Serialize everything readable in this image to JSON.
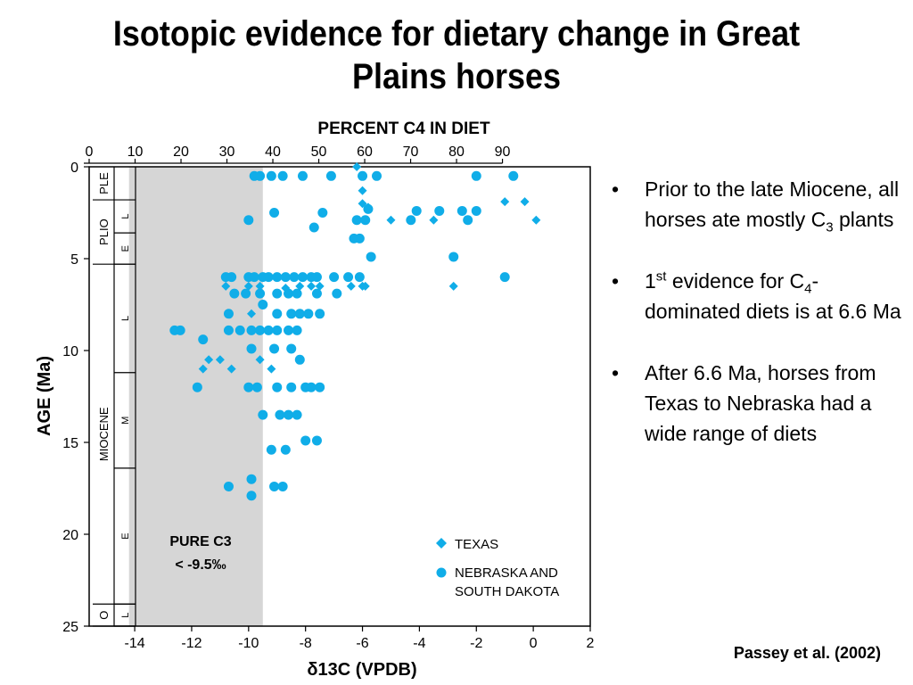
{
  "title": "Isotopic evidence for dietary change in Great Plains horses",
  "bullets": [
    {
      "prefix": "Prior to the late Miocene, all horses ate mostly C",
      "sub": "3",
      "suffix": " plants"
    },
    {
      "prefix": "1",
      "sup": "st",
      "mid": " evidence for C",
      "sub": "4",
      "suffix": "-dominated diets is at 6.6 Ma"
    },
    {
      "prefix": "After 6.6 Ma, horses from Texas to Nebraska had a wide range of diets"
    }
  ],
  "citation": "Passey et al. (2002)",
  "colors": {
    "points": "#10ade8",
    "shade": "#d6d6d6"
  },
  "chart_data": {
    "type": "scatter",
    "xlabel": "δ13C (VPDB)",
    "x_ticks": [
      -14,
      -12,
      -10,
      -8,
      -6,
      -4,
      -2,
      0,
      2
    ],
    "xlim": [
      -15.6,
      2
    ],
    "ylabel": "AGE (Ma)",
    "y_ticks": [
      0,
      5,
      10,
      15,
      20,
      25
    ],
    "ylim": [
      0,
      25
    ],
    "top_axis_label": "PERCENT C4 IN DIET",
    "top_ticks": [
      0,
      10,
      20,
      30,
      40,
      50,
      60,
      70,
      80,
      90
    ],
    "shaded_region": {
      "x_from": -15.6,
      "x_to": -9.5,
      "label_line1": "PURE C3",
      "label_line2": "< -9.5‰"
    },
    "timescale": {
      "epochs": [
        {
          "label": "PLE",
          "from": 0,
          "to": 1.8
        },
        {
          "label": "PLIO",
          "from": 1.8,
          "to": 5.3
        },
        {
          "label": "MIOCENE",
          "from": 5.3,
          "to": 23.8
        },
        {
          "label": "O",
          "from": 23.8,
          "to": 25
        }
      ],
      "subdivisions": [
        {
          "label": "L",
          "from": 1.8,
          "to": 3.6
        },
        {
          "label": "E",
          "from": 3.6,
          "to": 5.3
        },
        {
          "label": "L",
          "from": 5.3,
          "to": 11.2
        },
        {
          "label": "M",
          "from": 11.2,
          "to": 16.4
        },
        {
          "label": "E",
          "from": 16.4,
          "to": 23.8
        },
        {
          "label": "L",
          "from": 23.8,
          "to": 25
        }
      ]
    },
    "legend": {
      "placement": "bottom-right",
      "texas": "TEXAS",
      "nebraska_line1": "NEBRASKA AND",
      "nebraska_line2": "SOUTH DAKOTA"
    },
    "series": [
      {
        "name": "TEXAS",
        "marker": "diamond",
        "points": [
          [
            -6.2,
            0.0
          ],
          [
            -6.0,
            1.3
          ],
          [
            -6.0,
            2.0
          ],
          [
            -5.8,
            2.2
          ],
          [
            -5.0,
            2.9
          ],
          [
            -3.5,
            2.9
          ],
          [
            -1.0,
            1.9
          ],
          [
            -0.3,
            1.9
          ],
          [
            0.1,
            2.9
          ],
          [
            -10.8,
            6.5
          ],
          [
            -10.0,
            6.5
          ],
          [
            -9.6,
            6.5
          ],
          [
            -8.7,
            6.6
          ],
          [
            -8.2,
            6.5
          ],
          [
            -7.8,
            6.5
          ],
          [
            -7.5,
            6.5
          ],
          [
            -6.4,
            6.5
          ],
          [
            -6.0,
            6.5
          ],
          [
            -5.9,
            6.5
          ],
          [
            -2.8,
            6.5
          ],
          [
            -9.9,
            8.0
          ],
          [
            -11.4,
            10.5
          ],
          [
            -11.0,
            10.5
          ],
          [
            -11.6,
            11.0
          ],
          [
            -10.6,
            11.0
          ],
          [
            -9.6,
            10.5
          ],
          [
            -9.2,
            11.0
          ],
          [
            -9.7,
            12.0
          ]
        ]
      },
      {
        "name": "NEBRASKA AND SOUTH DAKOTA",
        "marker": "circle",
        "points": [
          [
            -9.8,
            0.5
          ],
          [
            -9.6,
            0.5
          ],
          [
            -9.2,
            0.5
          ],
          [
            -8.8,
            0.5
          ],
          [
            -8.1,
            0.5
          ],
          [
            -7.1,
            0.5
          ],
          [
            -6.0,
            0.5
          ],
          [
            -5.5,
            0.5
          ],
          [
            -2.0,
            0.5
          ],
          [
            -0.7,
            0.5
          ],
          [
            -9.1,
            2.5
          ],
          [
            -7.4,
            2.5
          ],
          [
            -5.8,
            2.3
          ],
          [
            -4.1,
            2.4
          ],
          [
            -3.3,
            2.4
          ],
          [
            -2.5,
            2.4
          ],
          [
            -2.0,
            2.4
          ],
          [
            -10.0,
            2.9
          ],
          [
            -7.7,
            3.3
          ],
          [
            -6.2,
            2.9
          ],
          [
            -5.9,
            2.9
          ],
          [
            -4.3,
            2.9
          ],
          [
            -2.3,
            2.9
          ],
          [
            -6.3,
            3.9
          ],
          [
            -6.1,
            3.9
          ],
          [
            -5.7,
            4.9
          ],
          [
            -2.8,
            4.9
          ],
          [
            -10.8,
            6.0
          ],
          [
            -10.6,
            6.0
          ],
          [
            -10.0,
            6.0
          ],
          [
            -9.8,
            6.0
          ],
          [
            -9.5,
            6.0
          ],
          [
            -9.3,
            6.0
          ],
          [
            -9.0,
            6.0
          ],
          [
            -8.7,
            6.0
          ],
          [
            -8.4,
            6.0
          ],
          [
            -8.1,
            6.0
          ],
          [
            -7.8,
            6.0
          ],
          [
            -7.6,
            6.0
          ],
          [
            -7.0,
            6.0
          ],
          [
            -6.5,
            6.0
          ],
          [
            -6.1,
            6.0
          ],
          [
            -1.0,
            6.0
          ],
          [
            -10.5,
            6.9
          ],
          [
            -10.1,
            6.9
          ],
          [
            -9.6,
            6.9
          ],
          [
            -9.0,
            6.9
          ],
          [
            -8.6,
            6.9
          ],
          [
            -8.3,
            6.9
          ],
          [
            -7.6,
            6.9
          ],
          [
            -6.9,
            6.9
          ],
          [
            -9.5,
            7.5
          ],
          [
            -10.7,
            8.0
          ],
          [
            -9.0,
            8.0
          ],
          [
            -8.5,
            8.0
          ],
          [
            -8.2,
            8.0
          ],
          [
            -7.9,
            8.0
          ],
          [
            -7.5,
            8.0
          ],
          [
            -12.6,
            8.9
          ],
          [
            -12.4,
            8.9
          ],
          [
            -10.7,
            8.9
          ],
          [
            -10.3,
            8.9
          ],
          [
            -9.9,
            8.9
          ],
          [
            -9.6,
            8.9
          ],
          [
            -9.3,
            8.9
          ],
          [
            -9.0,
            8.9
          ],
          [
            -8.6,
            8.9
          ],
          [
            -8.3,
            8.9
          ],
          [
            -11.6,
            9.4
          ],
          [
            -9.9,
            9.9
          ],
          [
            -9.1,
            9.9
          ],
          [
            -8.5,
            9.9
          ],
          [
            -8.2,
            10.5
          ],
          [
            -11.8,
            12.0
          ],
          [
            -10.0,
            12.0
          ],
          [
            -9.7,
            12.0
          ],
          [
            -9.0,
            12.0
          ],
          [
            -8.5,
            12.0
          ],
          [
            -8.0,
            12.0
          ],
          [
            -7.8,
            12.0
          ],
          [
            -7.5,
            12.0
          ],
          [
            -9.5,
            13.5
          ],
          [
            -8.9,
            13.5
          ],
          [
            -8.6,
            13.5
          ],
          [
            -8.3,
            13.5
          ],
          [
            -9.2,
            15.4
          ],
          [
            -8.7,
            15.4
          ],
          [
            -8.0,
            14.9
          ],
          [
            -7.6,
            14.9
          ],
          [
            -10.7,
            17.4
          ],
          [
            -9.9,
            17.0
          ],
          [
            -9.9,
            17.9
          ],
          [
            -9.1,
            17.4
          ],
          [
            -8.8,
            17.4
          ]
        ]
      }
    ]
  }
}
